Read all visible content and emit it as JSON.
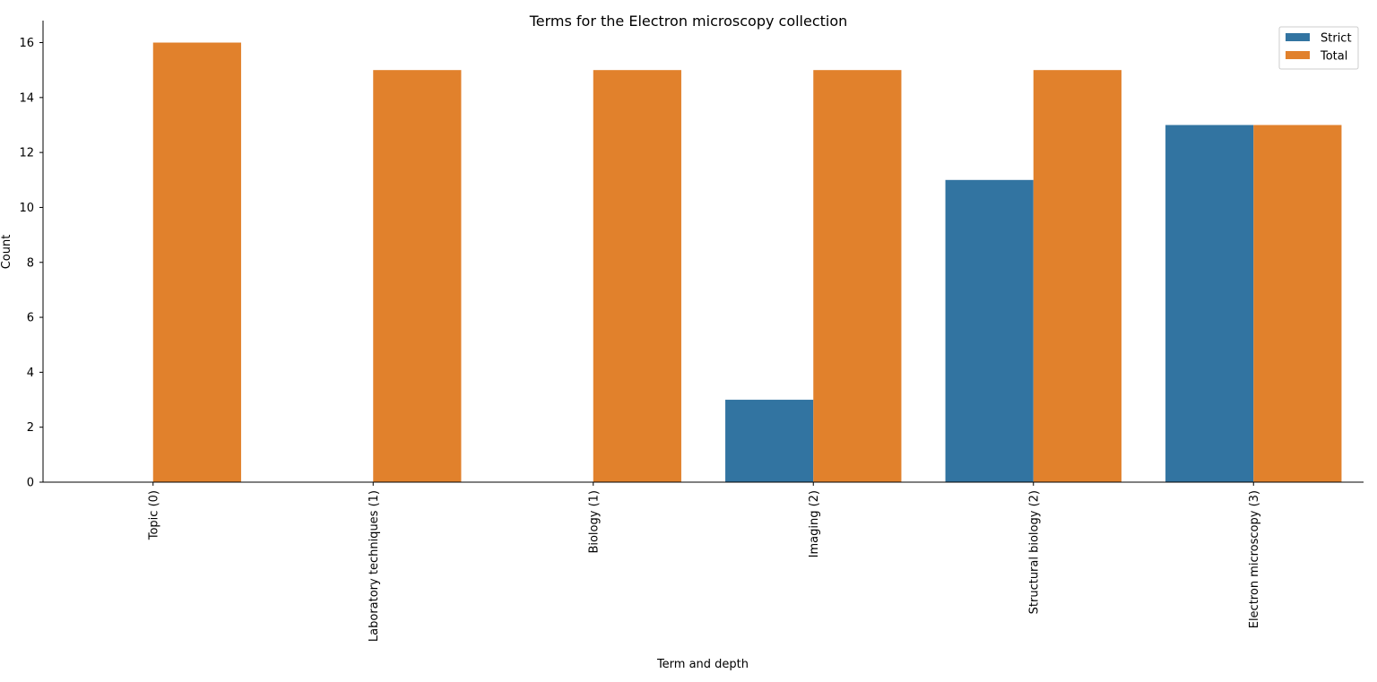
{
  "chart_data": {
    "type": "bar",
    "title": "Terms for the Electron microscopy collection",
    "xlabel": "Term and depth",
    "ylabel": "Count",
    "categories": [
      "Topic (0)",
      "Laboratory techniques (1)",
      "Biology (1)",
      "Imaging (2)",
      "Structural biology (2)",
      "Electron microscopy (3)"
    ],
    "series": [
      {
        "name": "Strict",
        "color": "#3274a1",
        "values": [
          0,
          0,
          0,
          3,
          11,
          13
        ]
      },
      {
        "name": "Total",
        "color": "#e1812c",
        "values": [
          16,
          15,
          15,
          15,
          15,
          13
        ]
      }
    ],
    "ylim": [
      0,
      16.8
    ],
    "yticks": [
      0,
      2,
      4,
      6,
      8,
      10,
      12,
      14,
      16
    ],
    "grid": false,
    "legend_position": "top-right"
  }
}
